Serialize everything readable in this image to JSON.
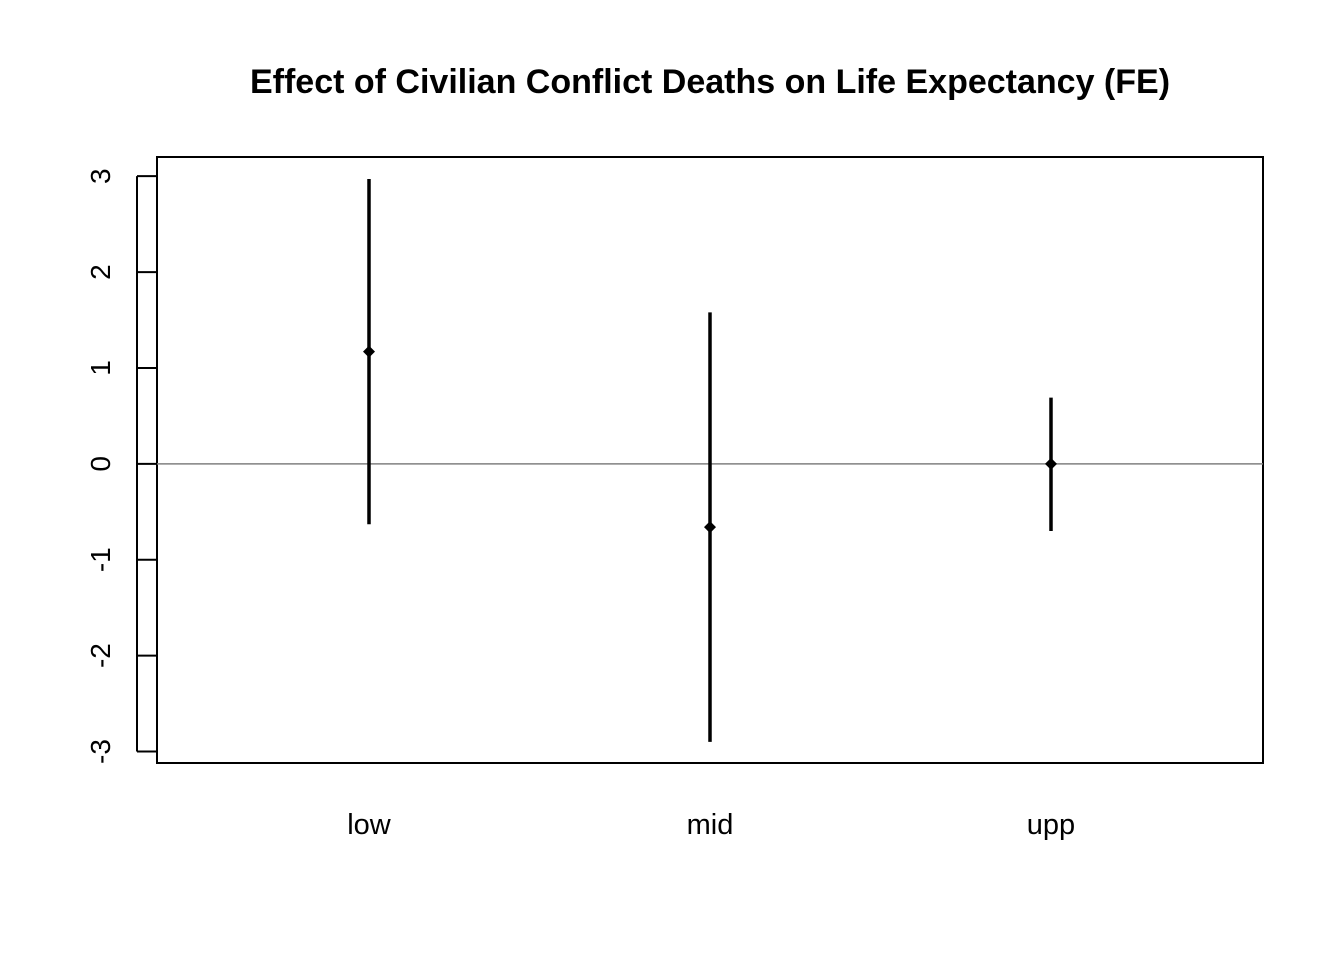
{
  "chart_data": {
    "type": "scatter",
    "title": "Effect of Civilian Conflict Deaths on Life Expectancy (FE)",
    "xlabel": "",
    "ylabel": "",
    "categories": [
      "low",
      "mid",
      "upp"
    ],
    "series": [
      {
        "estimates": [
          1.17,
          -0.66,
          0.0
        ],
        "lower": [
          -0.63,
          -2.9,
          -0.7
        ],
        "upper": [
          2.97,
          1.58,
          0.69
        ]
      }
    ],
    "ylim": [
      -3.12,
      3.2
    ],
    "yticks": [
      -3,
      -2,
      -1,
      0,
      1,
      2,
      3
    ],
    "reference_line": 0,
    "grid": false,
    "legend": "none",
    "colors": {
      "marks": "#000000",
      "reference_line": "#808080",
      "frame": "#000000"
    }
  }
}
